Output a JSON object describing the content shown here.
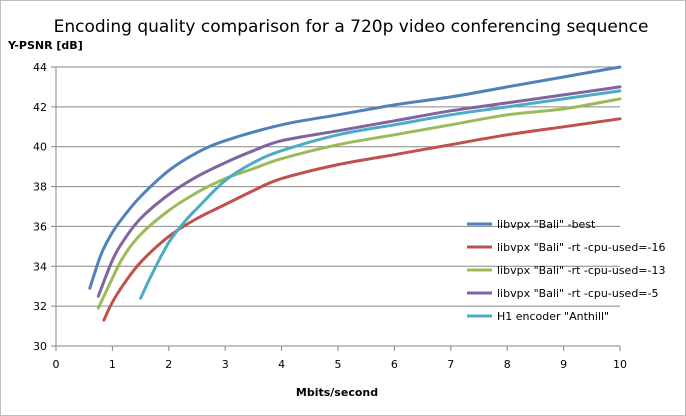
{
  "chart_data": {
    "type": "line",
    "title": "Encoding quality comparison for a 720p video conferencing sequence",
    "xlabel": "Mbits/second",
    "ylabel": "Y-PSNR [dB]",
    "xlim": [
      0,
      10
    ],
    "ylim": [
      30,
      44
    ],
    "xticks": [
      0,
      1,
      2,
      3,
      4,
      5,
      6,
      7,
      8,
      9,
      10
    ],
    "yticks": [
      30,
      32,
      34,
      36,
      38,
      40,
      42,
      44
    ],
    "grid": "horizontal",
    "legend_position": "right",
    "series": [
      {
        "name": "libvpx \"Bali\" -best",
        "color": "#4F81BD",
        "points": [
          [
            0.6,
            32.9
          ],
          [
            0.8,
            34.6
          ],
          [
            1.0,
            35.7
          ],
          [
            1.2,
            36.5
          ],
          [
            1.5,
            37.5
          ],
          [
            2.0,
            38.8
          ],
          [
            2.5,
            39.7
          ],
          [
            3.0,
            40.3
          ],
          [
            4.0,
            41.1
          ],
          [
            5.0,
            41.6
          ],
          [
            6.0,
            42.1
          ],
          [
            7.0,
            42.5
          ],
          [
            8.0,
            43.0
          ],
          [
            9.0,
            43.5
          ],
          [
            10.0,
            44.0
          ]
        ]
      },
      {
        "name": "libvpx \"Bali\" -rt -cpu-used=-16",
        "color": "#C0504D",
        "points": [
          [
            0.85,
            31.3
          ],
          [
            1.0,
            32.2
          ],
          [
            1.2,
            33.1
          ],
          [
            1.5,
            34.2
          ],
          [
            2.0,
            35.5
          ],
          [
            2.5,
            36.4
          ],
          [
            3.0,
            37.1
          ],
          [
            3.5,
            37.8
          ],
          [
            4.0,
            38.4
          ],
          [
            5.0,
            39.1
          ],
          [
            6.0,
            39.6
          ],
          [
            7.0,
            40.1
          ],
          [
            8.0,
            40.6
          ],
          [
            9.0,
            41.0
          ],
          [
            10.0,
            41.4
          ]
        ]
      },
      {
        "name": "libvpx \"Bali\" -rt -cpu-used=-13",
        "color": "#9BBB59",
        "points": [
          [
            0.75,
            31.9
          ],
          [
            1.0,
            33.4
          ],
          [
            1.2,
            34.5
          ],
          [
            1.5,
            35.6
          ],
          [
            2.0,
            36.8
          ],
          [
            2.5,
            37.7
          ],
          [
            3.0,
            38.4
          ],
          [
            3.5,
            38.9
          ],
          [
            4.0,
            39.4
          ],
          [
            5.0,
            40.1
          ],
          [
            6.0,
            40.6
          ],
          [
            7.0,
            41.1
          ],
          [
            8.0,
            41.6
          ],
          [
            9.0,
            41.9
          ],
          [
            10.0,
            42.4
          ]
        ]
      },
      {
        "name": "libvpx \"Bali\" -rt -cpu-used=-5",
        "color": "#8064A2",
        "points": [
          [
            0.75,
            32.5
          ],
          [
            1.0,
            34.3
          ],
          [
            1.2,
            35.3
          ],
          [
            1.5,
            36.4
          ],
          [
            2.0,
            37.6
          ],
          [
            2.5,
            38.5
          ],
          [
            3.0,
            39.2
          ],
          [
            3.5,
            39.8
          ],
          [
            4.0,
            40.3
          ],
          [
            5.0,
            40.8
          ],
          [
            6.0,
            41.3
          ],
          [
            7.0,
            41.8
          ],
          [
            8.0,
            42.2
          ],
          [
            9.0,
            42.6
          ],
          [
            10.0,
            43.0
          ]
        ]
      },
      {
        "name": "H1 encoder \"Anthill\"",
        "color": "#4BACC6",
        "points": [
          [
            1.5,
            32.4
          ],
          [
            1.7,
            33.6
          ],
          [
            2.0,
            35.2
          ],
          [
            2.3,
            36.3
          ],
          [
            2.5,
            36.9
          ],
          [
            3.0,
            38.3
          ],
          [
            3.5,
            39.2
          ],
          [
            4.0,
            39.8
          ],
          [
            5.0,
            40.6
          ],
          [
            6.0,
            41.1
          ],
          [
            7.0,
            41.6
          ],
          [
            8.0,
            42.0
          ],
          [
            9.0,
            42.4
          ],
          [
            10.0,
            42.8
          ]
        ]
      }
    ]
  }
}
